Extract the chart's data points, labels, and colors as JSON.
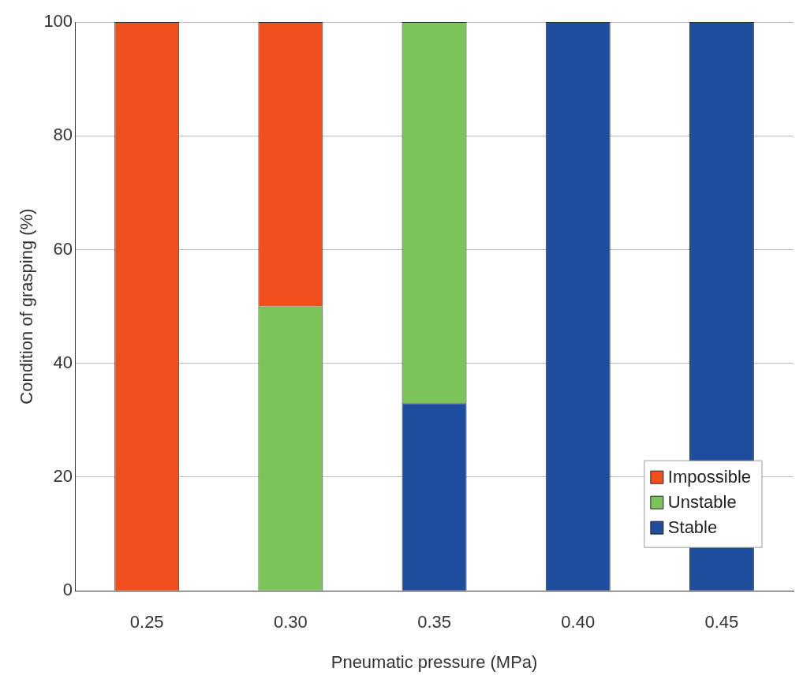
{
  "chart_data": {
    "type": "bar",
    "xlabel": "Pneumatic pressure (MPa)",
    "ylabel": "Condition of grasping (%)",
    "categories": [
      "0.25",
      "0.30",
      "0.35",
      "0.40",
      "0.45"
    ],
    "stacked": true,
    "series": [
      {
        "name": "Stable",
        "color": "#1f4e9e",
        "values": [
          0,
          0,
          33,
          100,
          100
        ]
      },
      {
        "name": "Unstable",
        "color": "#7cc35a",
        "values": [
          0,
          50,
          67,
          0,
          0
        ]
      },
      {
        "name": "Impossible",
        "color": "#f24e1e",
        "values": [
          100,
          50,
          0,
          0,
          0
        ]
      }
    ],
    "ylim": [
      0,
      100
    ],
    "yticks": [
      0,
      20,
      40,
      60,
      80,
      100
    ],
    "grid": "y",
    "legend": "bottom right"
  }
}
